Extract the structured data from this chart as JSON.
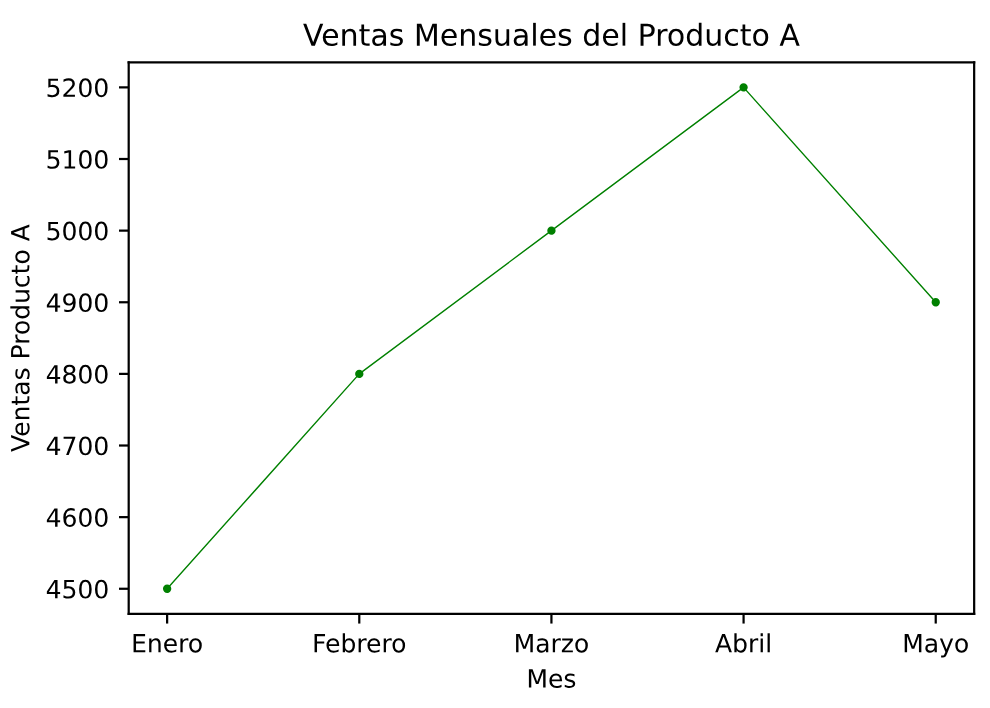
{
  "chart_data": {
    "type": "line",
    "title": "Ventas Mensuales del Producto A",
    "xlabel": "Mes",
    "ylabel": "Ventas Producto A",
    "categories": [
      "Enero",
      "Febrero",
      "Marzo",
      "Abril",
      "Mayo"
    ],
    "series": [
      {
        "color": "#008000",
        "values": [
          4500,
          4800,
          5000,
          5200,
          4900
        ]
      }
    ],
    "ylim": [
      4465,
      5235
    ],
    "yticks": [
      4500,
      4600,
      4700,
      4800,
      4900,
      5000,
      5100,
      5200
    ],
    "marker": "circle",
    "line_style": "solid"
  }
}
